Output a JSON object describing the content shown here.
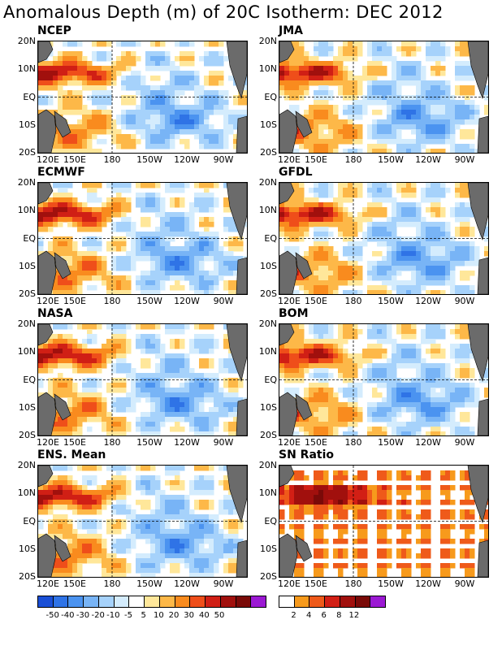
{
  "title": "Anomalous Depth (m) of 20C Isotherm: DEC 2012",
  "lat_labels": [
    "20N",
    "10N",
    "EQ",
    "10S",
    "20S"
  ],
  "lon_labels": [
    "120E",
    "150E",
    "180",
    "150W",
    "120W",
    "90W"
  ],
  "panels": [
    {
      "name": "NCEP",
      "kind": "anomaly",
      "seed": 3
    },
    {
      "name": "JMA",
      "kind": "anomaly",
      "seed": 7
    },
    {
      "name": "ECMWF",
      "kind": "anomaly",
      "seed": 11
    },
    {
      "name": "GFDL",
      "kind": "anomaly",
      "seed": 13
    },
    {
      "name": "NASA",
      "kind": "anomaly",
      "seed": 17
    },
    {
      "name": "BOM",
      "kind": "anomaly",
      "seed": 19
    },
    {
      "name": "ENS. Mean",
      "kind": "anomaly",
      "seed": 23
    },
    {
      "name": "SN Ratio",
      "kind": "snr",
      "seed": 29
    }
  ],
  "anomaly_colorbar": {
    "colors": [
      "#1a4fd6",
      "#2f73e6",
      "#4b93f0",
      "#78b4f6",
      "#a6d2fb",
      "#d4ecfd",
      "#ffffff",
      "#ffe79a",
      "#fdb848",
      "#f98b1e",
      "#ef4e1a",
      "#d01f15",
      "#a1100d",
      "#7a0a08",
      "#9b19d3"
    ],
    "labels": [
      "-50",
      "-40",
      "-30",
      "-20",
      "-10",
      "-5",
      "5",
      "10",
      "20",
      "30",
      "40",
      "50"
    ]
  },
  "snr_colorbar": {
    "colors": [
      "#ffffff",
      "#f79a1c",
      "#ef5a1a",
      "#d21f15",
      "#a1100d",
      "#7a0a08",
      "#9b19d3"
    ],
    "labels": [
      "2",
      "4",
      "6",
      "8",
      "12"
    ]
  },
  "land_color": "#6b6b6b"
}
